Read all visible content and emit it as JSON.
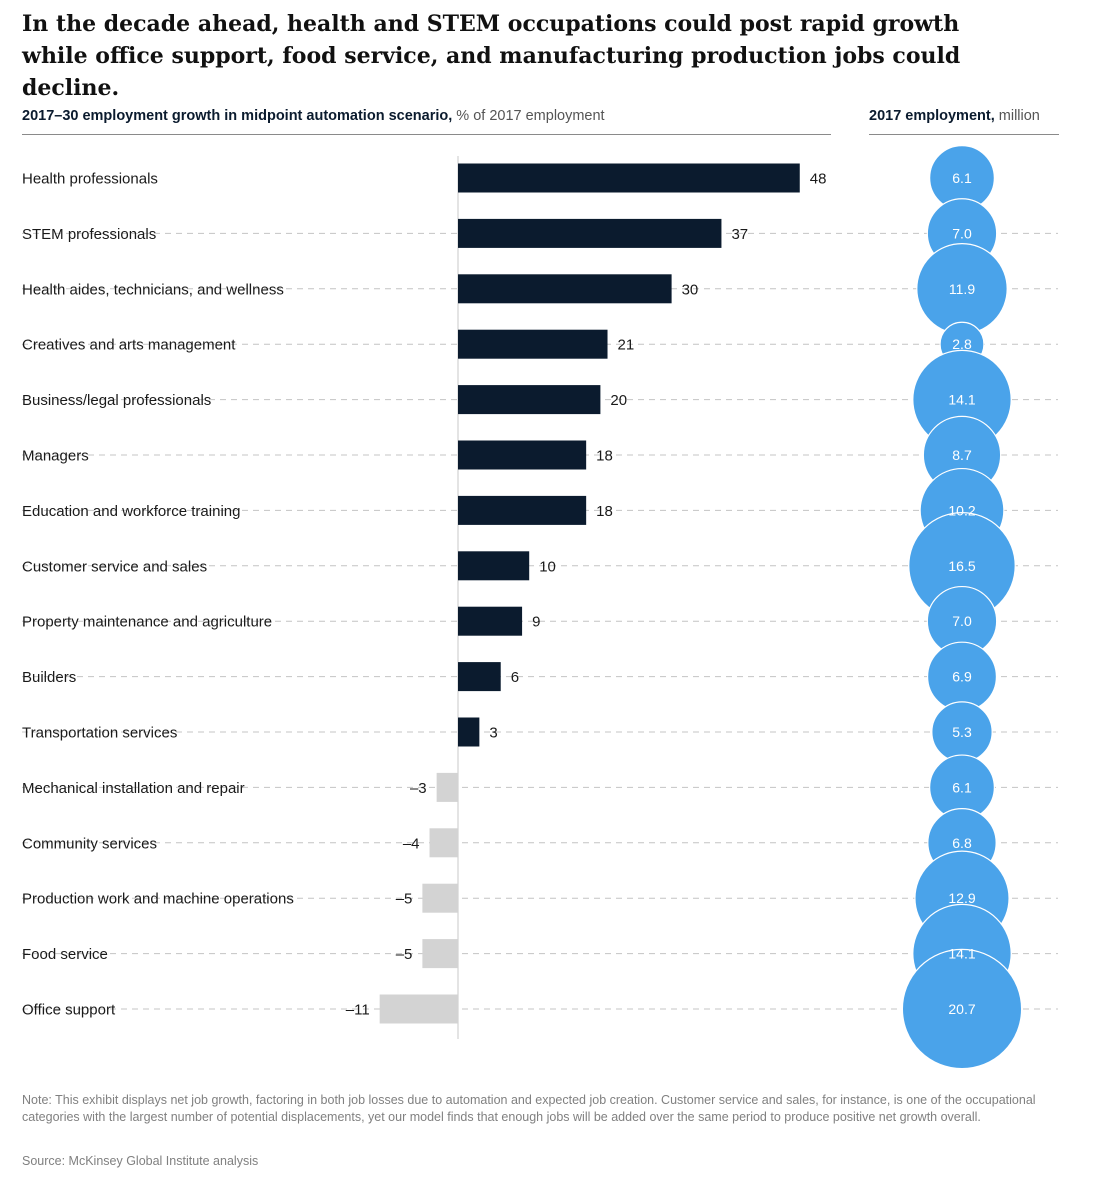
{
  "header": {
    "title": "In the decade ahead, health and STEM occupations could post rapid growth while office support, food service, and manufacturing production jobs could decline."
  },
  "left_header": {
    "bold": "2017–30 employment growth in midpoint automation scenario,",
    "light": " % of 2017 employment"
  },
  "right_header": {
    "bold": "2017 employment,",
    "light": " million"
  },
  "colors": {
    "positive_bar": "#0b1b2e",
    "negative_bar": "#d3d3d3",
    "bubble": "#4aa3ea",
    "text": "#1a1a1a"
  },
  "chart_data": {
    "type": "bar",
    "categories": [
      "Health professionals",
      "STEM professionals",
      "Health aides, technicians, and wellness",
      "Creatives and arts management",
      "Business/legal professionals",
      "Managers",
      "Education and workforce training",
      "Customer service and sales",
      "Property maintenance and agriculture",
      "Builders",
      "Transportation services",
      "Mechanical installation and repair",
      "Community services",
      "Production work and machine operations",
      "Food service",
      "Office support"
    ],
    "values": [
      48,
      37,
      30,
      21,
      20,
      18,
      18,
      10,
      9,
      6,
      3,
      -3,
      -4,
      -5,
      -5,
      -11
    ],
    "value_labels": [
      "48",
      "37",
      "30",
      "21",
      "20",
      "18",
      "18",
      "10",
      "9",
      "6",
      "3",
      "–3",
      "–4",
      "–5",
      "–5",
      "–11"
    ],
    "employment_2017": [
      6.1,
      7.0,
      11.9,
      2.8,
      14.1,
      8.7,
      10.2,
      16.5,
      7.0,
      6.9,
      5.3,
      6.1,
      6.8,
      12.9,
      14.1,
      20.7
    ],
    "employment_labels": [
      "6.1",
      "7.0",
      "11.9",
      "2.8",
      "14.1",
      "8.7",
      "10.2",
      "16.5",
      "7.0",
      "6.9",
      "5.3",
      "6.1",
      "6.8",
      "12.9",
      "14.1",
      "20.7"
    ]
  },
  "footer": {
    "note": "Note: This exhibit displays net job growth, factoring in both job losses due to automation and expected job creation. Customer service and sales, for instance, is one of the occupational categories with the largest number of potential displacements, yet our model finds that enough jobs will be added over the same period to produce positive net growth overall.",
    "source": "Source: McKinsey Global Institute analysis"
  }
}
